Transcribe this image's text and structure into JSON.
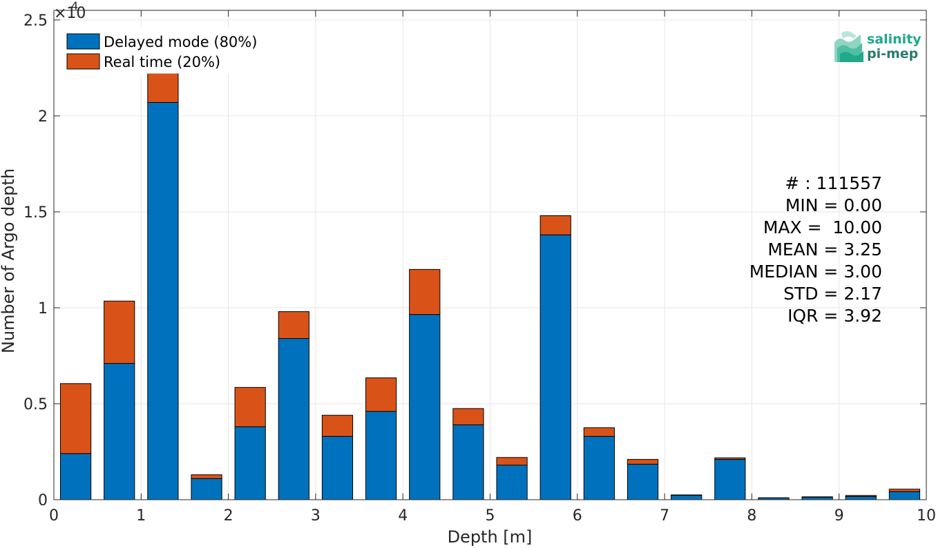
{
  "chart_data": {
    "type": "bar",
    "stacked": true,
    "xlabel": "Depth [m]",
    "ylabel": "Number of Argo depth",
    "xlim": [
      0,
      10
    ],
    "ylim": [
      0,
      25500
    ],
    "y_exponent_label": "×10",
    "y_exponent_power": "4",
    "x_ticks": [
      0,
      1,
      2,
      3,
      4,
      5,
      6,
      7,
      8,
      9,
      10
    ],
    "x_tick_labels": [
      "0",
      "1",
      "2",
      "3",
      "4",
      "5",
      "6",
      "7",
      "8",
      "9",
      "10"
    ],
    "y_ticks": [
      0,
      5000,
      10000,
      15000,
      20000,
      25000
    ],
    "y_tick_labels": [
      "0",
      "0.5",
      "1",
      "1.5",
      "2",
      "2.5"
    ],
    "grid": true,
    "legend_position": "top-left",
    "bin_centers": [
      0.25,
      0.75,
      1.25,
      1.75,
      2.25,
      2.75,
      3.25,
      3.75,
      4.25,
      4.75,
      5.25,
      5.75,
      6.25,
      6.75,
      7.25,
      7.75,
      8.25,
      8.75,
      9.25,
      9.75
    ],
    "bar_width": 0.35,
    "series": [
      {
        "name": "Delayed mode (80%)",
        "color": "#0072BD",
        "values": [
          2400,
          7100,
          20700,
          1100,
          3800,
          8400,
          3300,
          4600,
          9650,
          3900,
          1800,
          13800,
          3300,
          1850,
          230,
          2100,
          90,
          130,
          170,
          420
        ]
      },
      {
        "name": "Real time (20%)",
        "color": "#D95319",
        "values": [
          3650,
          3250,
          3800,
          200,
          2050,
          1400,
          1100,
          1750,
          2350,
          850,
          400,
          1000,
          450,
          250,
          20,
          80,
          10,
          20,
          50,
          130
        ]
      }
    ],
    "stats": [
      "# : 111557",
      "MIN = 0.00",
      "MAX =  10.00",
      "MEAN = 3.25",
      "MEDIAN = 3.00",
      "STD = 2.17",
      "IQR = 3.92"
    ]
  },
  "logo": {
    "line1": "salinity",
    "line2": "pi-mep",
    "color1": "#1fa98a",
    "color2": "#2a7a6e"
  }
}
